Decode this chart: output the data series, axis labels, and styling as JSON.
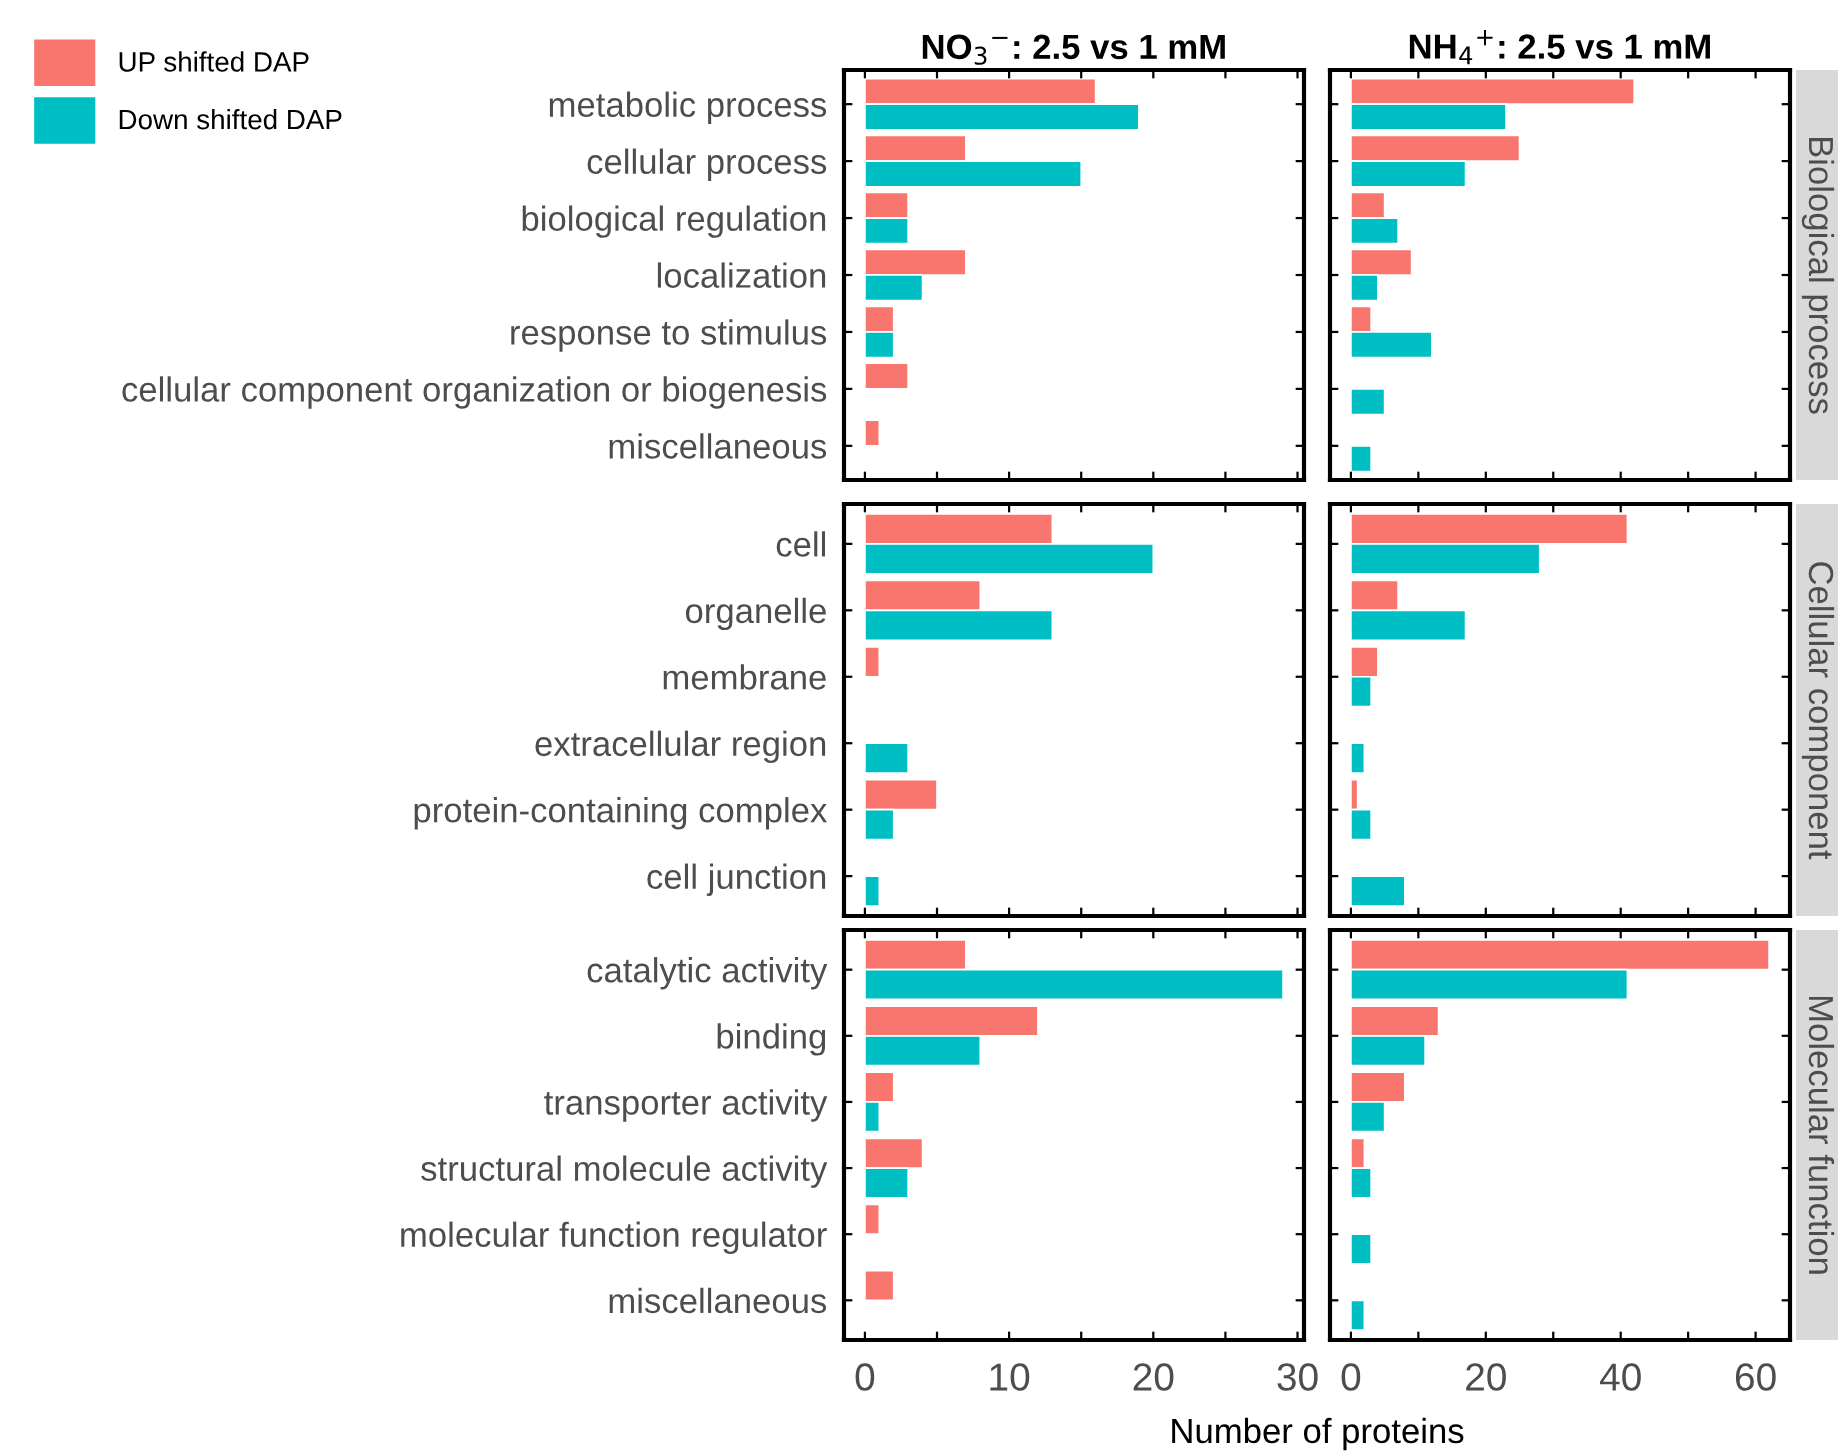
{
  "chart_data": [
    {
      "type": "bar",
      "orientation": "horizontal",
      "title": "NO$_{3}$$^{−}$: 2.5 vs 1 mM",
      "legend": "top left",
      "tick_labels": "y",
      "categories": [
        "metabolic process",
        "cellular process",
        "biological regulation",
        "localization",
        "response to stimulus",
        "cellular component organization or biogenesis",
        "miscellaneous"
      ],
      "series": [
        {
          "name": "UP shifted DAP",
          "color": "#f8766d",
          "values": [
            16,
            7,
            3,
            7,
            2,
            3,
            1
          ]
        },
        {
          "name": "Down shifted DAP",
          "color": "#00bfc4",
          "values": [
            19,
            15,
            3,
            4,
            2,
            null,
            null
          ]
        }
      ],
      "xlim": [
        -1.45,
        30.45
      ],
      "xticks": [
        0,
        {
          "value": 5,
          "label": null
        },
        10,
        {
          "value": 15,
          "label": null
        },
        20,
        {
          "value": 25,
          "label": null
        },
        30
      ]
    },
    {
      "type": "bar",
      "orientation": "horizontal",
      "title": "NH$_{4}$$^{+}$: 2.5 vs 1 mM",
      "y2label": "Biological process",
      "tick_labels": false,
      "categories": [
        null,
        null,
        null,
        null,
        null,
        null,
        null
      ],
      "series": [
        {
          "color": "#f8766d",
          "values": [
            42,
            25,
            5,
            9,
            3,
            null,
            null
          ]
        },
        {
          "color": "#00bfc4",
          "values": [
            23,
            17,
            7,
            4,
            12,
            5,
            3
          ]
        }
      ],
      "xlim": [
        -3.1,
        65.1
      ],
      "xticks": [
        0,
        {
          "value": 10,
          "label": null
        },
        20,
        {
          "value": 30,
          "label": null
        },
        40,
        {
          "value": 50,
          "label": null
        },
        60
      ]
    },
    {
      "type": "bar",
      "orientation": "horizontal",
      "tick_labels": "y",
      "categories": [
        "cell",
        "organelle",
        "membrane",
        "extracellular region",
        "protein-containing complex",
        "cell junction"
      ],
      "series": [
        {
          "color": "#f8766d",
          "values": [
            13,
            8,
            1,
            null,
            5,
            null
          ]
        },
        {
          "color": "#00bfc4",
          "values": [
            20,
            13,
            null,
            3,
            2,
            1
          ]
        }
      ],
      "xlim": [
        -1.45,
        30.45
      ],
      "xticks": [
        0,
        {
          "value": 5,
          "label": null
        },
        10,
        {
          "value": 15,
          "label": null
        },
        20,
        {
          "value": 25,
          "label": null
        },
        30
      ]
    },
    {
      "type": "bar",
      "orientation": "horizontal",
      "y2label": "Cellular component",
      "tick_labels": false,
      "categories": [
        null,
        null,
        null,
        null,
        null,
        null
      ],
      "series": [
        {
          "color": "#f8766d",
          "values": [
            41,
            7,
            4,
            null,
            1,
            null
          ]
        },
        {
          "color": "#00bfc4",
          "values": [
            28,
            17,
            3,
            2,
            3,
            8
          ]
        }
      ],
      "xlim": [
        -3.1,
        65.1
      ],
      "xticks": [
        0,
        {
          "value": 10,
          "label": null
        },
        20,
        {
          "value": 30,
          "label": null
        },
        40,
        {
          "value": 50,
          "label": null
        },
        60
      ]
    },
    {
      "type": "bar",
      "orientation": "horizontal",
      "xlabel": "Number of proteins",
      "categories": [
        "catalytic activity",
        "binding",
        "transporter activity",
        "structural molecule activity",
        "molecular function regulator",
        "miscellaneous"
      ],
      "series": [
        {
          "color": "#f8766d",
          "values": [
            7,
            12,
            2,
            4,
            1,
            2
          ]
        },
        {
          "color": "#00bfc4",
          "values": [
            29,
            8,
            1,
            3,
            null,
            null
          ]
        }
      ],
      "xlim": [
        -1.45,
        30.45
      ],
      "xticks": [
        0,
        {
          "value": 5,
          "label": null
        },
        10,
        {
          "value": 15,
          "label": null
        },
        20,
        {
          "value": 25,
          "label": null
        },
        30
      ]
    },
    {
      "type": "bar",
      "orientation": "horizontal",
      "y2label": "Molecular function",
      "tick_labels": "x",
      "categories": [
        null,
        null,
        null,
        null,
        null,
        null
      ],
      "series": [
        {
          "color": "#f8766d",
          "values": [
            62,
            13,
            8,
            2,
            null,
            null
          ]
        },
        {
          "color": "#00bfc4",
          "values": [
            41,
            11,
            5,
            3,
            3,
            2
          ]
        }
      ],
      "xlim": [
        -3.1,
        65.1
      ],
      "xticks": [
        0,
        {
          "value": 10,
          "label": null
        },
        20,
        {
          "value": 30,
          "label": null
        },
        40,
        {
          "value": 50,
          "label": null
        },
        60
      ]
    }
  ]
}
